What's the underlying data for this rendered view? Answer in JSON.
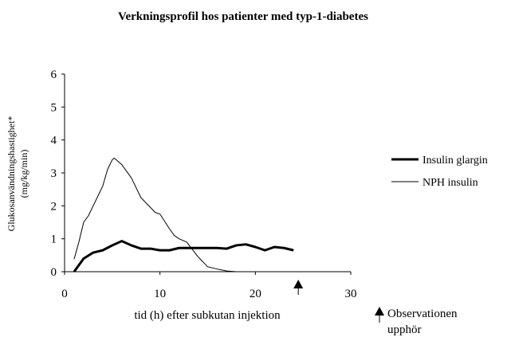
{
  "chart_data": {
    "type": "line",
    "title": "Verkningsprofil hos patienter med typ-1-diabetes",
    "xlabel": "tid (h) efter subkutan injektion",
    "ylabel": "Glukosanvändningshastighet*",
    "ylabel_unit": "(mg/kg/min)",
    "xlim": [
      0,
      30
    ],
    "ylim": [
      0,
      6
    ],
    "xticks": [
      0,
      10,
      20,
      30
    ],
    "yticks": [
      0,
      1,
      2,
      3,
      4,
      5,
      6
    ],
    "grid": false,
    "legend_position": "right",
    "series": [
      {
        "name": "Insulin glargin",
        "style": "thick",
        "x": [
          1,
          2,
          3,
          4,
          5,
          6,
          7,
          8,
          9,
          10,
          11,
          12,
          13,
          14,
          15,
          16,
          17,
          18,
          19,
          20,
          21,
          22,
          23,
          24
        ],
        "y": [
          0,
          0.4,
          0.58,
          0.65,
          0.8,
          0.93,
          0.8,
          0.7,
          0.7,
          0.65,
          0.65,
          0.72,
          0.72,
          0.72,
          0.72,
          0.72,
          0.7,
          0.8,
          0.83,
          0.75,
          0.65,
          0.75,
          0.72,
          0.65
        ]
      },
      {
        "name": "NPH insulin",
        "style": "thin",
        "x": [
          1,
          1.5,
          2,
          2.5,
          3,
          4,
          4.5,
          5,
          5.2,
          6,
          7,
          8,
          9,
          9.5,
          10,
          11,
          11.5,
          12,
          12.8,
          14,
          15,
          16,
          17,
          18,
          19
        ],
        "y": [
          0.38,
          0.9,
          1.5,
          1.7,
          2.0,
          2.6,
          3.1,
          3.4,
          3.45,
          3.25,
          2.85,
          2.25,
          1.95,
          1.8,
          1.75,
          1.3,
          1.1,
          1.0,
          0.9,
          0.45,
          0.15,
          0.08,
          0.02,
          0,
          0
        ]
      }
    ],
    "annotations": {
      "arrow_x": 24.5,
      "note_line1": "Observationen",
      "note_line2": "upphör"
    }
  }
}
